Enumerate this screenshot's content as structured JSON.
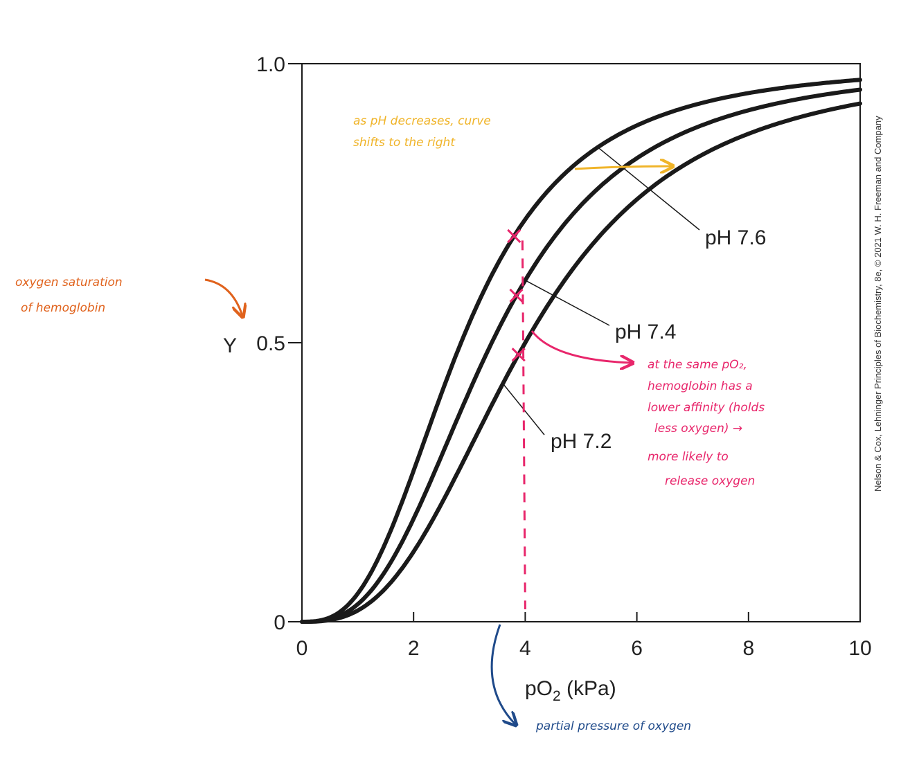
{
  "chart_data": {
    "type": "line",
    "xlabel": "pO",
    "xlabel_sub": "2",
    "xlabel_unit": " (kPa)",
    "ylabel": "Y",
    "xlim": [
      0,
      10
    ],
    "ylim": [
      0,
      1
    ],
    "x_ticks": [
      0,
      2,
      4,
      6,
      8,
      10
    ],
    "y_ticks": [
      {
        "value": 0,
        "label": "0"
      },
      {
        "value": 0.5,
        "label": "0.5"
      },
      {
        "value": 1.0,
        "label": "1.0"
      }
    ],
    "series": [
      {
        "name": "pH 7.6",
        "p50": 2.85,
        "n": 2.8
      },
      {
        "name": "pH 7.4",
        "p50": 3.4,
        "n": 2.8
      },
      {
        "name": "pH 7.2",
        "p50": 4.0,
        "n": 2.8
      }
    ],
    "annotations": {
      "shift_note": [
        "as pH decreases, curve",
        "shifts to the right"
      ],
      "y_note": [
        "oxygen saturation",
        "of hemoglobin"
      ],
      "affinity_note": [
        "at the same pO₂,",
        "hemoglobin has a",
        "lower affinity (holds",
        "less oxygen) →",
        "more likely to",
        "release oxygen"
      ],
      "x_note": "partial pressure of oxygen",
      "reference_x": 4.0
    },
    "credit": "Nelson & Cox, Lehninger Principles of Biochemistry, 8e, © 2021 W. H. Freeman and Company",
    "colors": {
      "curves": "#1a1a1a",
      "shift_note": "#f0b429",
      "y_note": "#e0621c",
      "affinity_note": "#e8266b",
      "x_note": "#1f4a8a"
    }
  }
}
